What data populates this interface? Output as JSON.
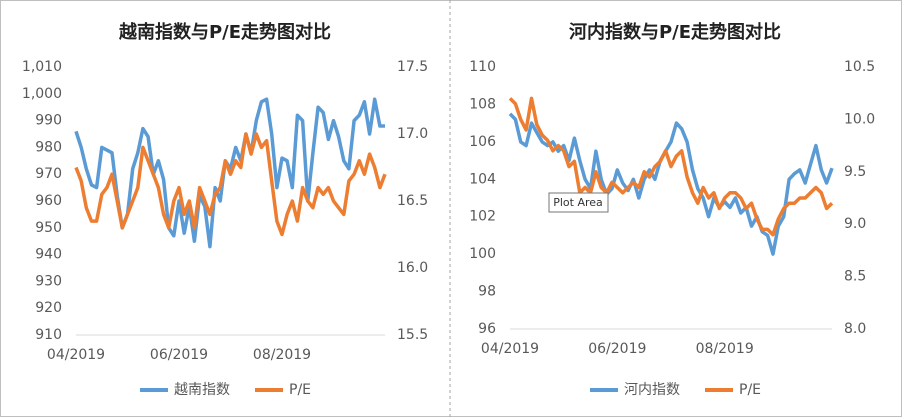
{
  "chart_data": [
    {
      "type": "line",
      "title": "越南指数与P/E走势图对比",
      "categories": [
        "04/2019",
        null,
        null,
        null,
        null,
        null,
        null,
        null,
        null,
        null,
        null,
        null,
        null,
        null,
        null,
        null,
        null,
        null,
        null,
        null,
        "06/2019",
        null,
        null,
        null,
        null,
        null,
        null,
        null,
        null,
        null,
        null,
        null,
        null,
        null,
        null,
        null,
        null,
        null,
        null,
        null,
        "08/2019",
        null,
        null,
        null,
        null,
        null,
        null,
        null,
        null,
        null,
        null,
        null,
        null,
        null,
        null,
        null,
        null,
        null,
        null,
        null,
        null
      ],
      "series": [
        {
          "name": "越南指数",
          "color": "#5b9bd5",
          "values": [
            986,
            980,
            972,
            966,
            965,
            980,
            979,
            978,
            962,
            950,
            955,
            972,
            978,
            987,
            984,
            970,
            975,
            968,
            950,
            947,
            960,
            948,
            958,
            945,
            962,
            958,
            943,
            965,
            960,
            975,
            972,
            980,
            975,
            985,
            978,
            990,
            997,
            998,
            985,
            965,
            976,
            975,
            965,
            992,
            990,
            960,
            978,
            995,
            993,
            983,
            990,
            984,
            975,
            972,
            990,
            992,
            997,
            985,
            998,
            988,
            988
          ]
        },
        {
          "name": "P/E",
          "color": "#ed7d31",
          "axis": "y2",
          "values": [
            16.75,
            16.65,
            16.45,
            16.35,
            16.35,
            16.55,
            16.6,
            16.7,
            16.5,
            16.3,
            16.4,
            16.5,
            16.6,
            16.9,
            16.8,
            16.7,
            16.6,
            16.4,
            16.3,
            16.5,
            16.6,
            16.4,
            16.5,
            16.3,
            16.6,
            16.5,
            16.4,
            16.55,
            16.6,
            16.8,
            16.7,
            16.8,
            16.75,
            17.0,
            16.85,
            17.0,
            16.9,
            16.95,
            16.65,
            16.35,
            16.25,
            16.4,
            16.5,
            16.35,
            16.6,
            16.5,
            16.45,
            16.6,
            16.55,
            16.6,
            16.5,
            16.45,
            16.4,
            16.65,
            16.7,
            16.8,
            16.7,
            16.85,
            16.75,
            16.6,
            16.7
          ]
        }
      ],
      "ylim": [
        910,
        1010
      ],
      "yticks": [
        910,
        920,
        930,
        940,
        950,
        960,
        970,
        980,
        990,
        {
          "value": 1000,
          "label": "1,000"
        },
        {
          "value": 1010,
          "label": "1,010"
        }
      ],
      "y2lim": [
        15.5,
        17.5
      ],
      "y2ticks": [
        15.5,
        {
          "value": 16,
          "label": "16.0"
        },
        16.5,
        {
          "value": 17,
          "label": "17.0"
        },
        17.5
      ],
      "grid": false,
      "legend": "bottom"
    },
    {
      "type": "line",
      "title": "河内指数与P/E走势图对比",
      "categories": [
        "04/2019",
        null,
        null,
        null,
        null,
        null,
        null,
        null,
        null,
        null,
        null,
        null,
        null,
        null,
        null,
        null,
        null,
        null,
        null,
        null,
        "06/2019",
        null,
        null,
        null,
        null,
        null,
        null,
        null,
        null,
        null,
        null,
        null,
        null,
        null,
        null,
        null,
        null,
        null,
        null,
        null,
        "08/2019",
        null,
        null,
        null,
        null,
        null,
        null,
        null,
        null,
        null,
        null,
        null,
        null,
        null,
        null,
        null,
        null,
        null,
        null,
        null,
        null
      ],
      "series": [
        {
          "name": "河内指数",
          "color": "#5b9bd5",
          "values": [
            107.5,
            107.2,
            106.0,
            105.8,
            107.0,
            106.5,
            106.0,
            105.8,
            106.0,
            105.5,
            105.8,
            105.0,
            106.2,
            105.0,
            104.0,
            103.5,
            105.5,
            104.0,
            103.2,
            103.5,
            104.5,
            103.8,
            103.4,
            104.0,
            103.0,
            104.0,
            104.5,
            104.0,
            105.0,
            105.5,
            106.0,
            107.0,
            106.7,
            106.0,
            104.5,
            103.5,
            103.0,
            102.0,
            103.0,
            102.5,
            102.8,
            102.5,
            103.0,
            102.2,
            102.5,
            101.5,
            102.0,
            101.2,
            101.0,
            100.0,
            101.5,
            102.0,
            104.0,
            104.3,
            104.5,
            103.8,
            104.8,
            105.8,
            104.5,
            103.8,
            104.6
          ]
        },
        {
          "name": "P/E",
          "color": "#ed7d31",
          "axis": "y2",
          "values": [
            10.2,
            10.15,
            10.0,
            9.9,
            10.2,
            9.95,
            9.85,
            9.8,
            9.7,
            9.75,
            9.7,
            9.55,
            9.6,
            9.3,
            9.35,
            9.3,
            9.5,
            9.35,
            9.3,
            9.4,
            9.35,
            9.3,
            9.35,
            9.4,
            9.35,
            9.5,
            9.45,
            9.55,
            9.6,
            9.7,
            9.55,
            9.65,
            9.7,
            9.45,
            9.3,
            9.2,
            9.35,
            9.25,
            9.3,
            9.15,
            9.25,
            9.3,
            9.3,
            9.25,
            9.15,
            9.2,
            9.05,
            8.95,
            8.95,
            8.9,
            9.05,
            9.15,
            9.2,
            9.2,
            9.25,
            9.25,
            9.3,
            9.35,
            9.3,
            9.15,
            9.2
          ]
        }
      ],
      "ylim": [
        96,
        110
      ],
      "yticks": [
        96,
        98,
        100,
        102,
        104,
        106,
        108,
        110
      ],
      "y2lim": [
        8,
        10.5
      ],
      "y2ticks": [
        {
          "value": 8,
          "label": "8.0"
        },
        8.5,
        {
          "value": 9,
          "label": "9.0"
        },
        9.5,
        {
          "value": 10,
          "label": "10.0"
        },
        10.5
      ],
      "grid": false,
      "legend": "bottom"
    }
  ],
  "tooltip": "Plot Area"
}
